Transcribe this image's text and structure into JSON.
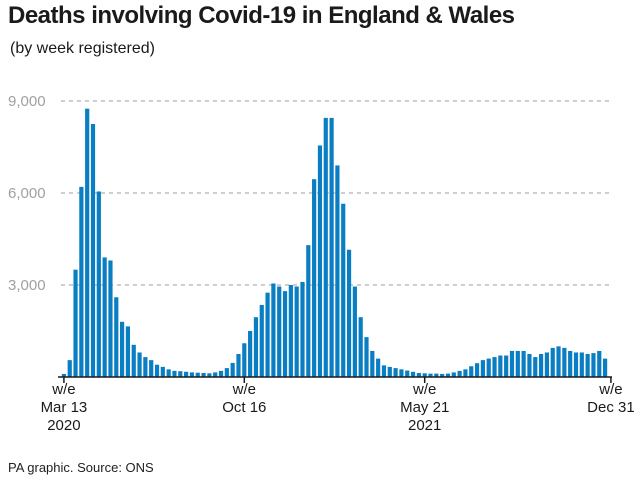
{
  "title": "Deaths involving Covid-19 in England & Wales",
  "subtitle": "(by week registered)",
  "source": "PA graphic. Source: ONS",
  "colors": {
    "bar": "#0a7ec2",
    "grid": "#b0b0b0",
    "axis": "#1a1a1a"
  },
  "chart_data": {
    "type": "bar",
    "title": "Deaths involving Covid-19 in England & Wales",
    "subtitle": "(by week registered)",
    "xlabel": "",
    "ylabel": "",
    "ylim": [
      0,
      9000
    ],
    "yticks": [
      3000,
      6000,
      9000
    ],
    "ytick_labels": [
      "3,000",
      "6,000",
      "9,000"
    ],
    "grid": true,
    "x_tick_labels": [
      {
        "bar_index": 0,
        "lines": [
          "w/e",
          "Mar 13",
          "2020"
        ]
      },
      {
        "bar_index": 31,
        "lines": [
          "w/e",
          "Oct 16"
        ]
      },
      {
        "bar_index": 62,
        "lines": [
          "w/e",
          "May 21",
          "2021"
        ]
      },
      {
        "bar_index": 94,
        "lines": [
          "w/e",
          "Dec 31"
        ]
      }
    ],
    "values": [
      100,
      550,
      3500,
      6200,
      8750,
      8250,
      6050,
      3900,
      3800,
      2600,
      1800,
      1650,
      1050,
      800,
      650,
      550,
      400,
      330,
      250,
      200,
      190,
      170,
      150,
      140,
      130,
      120,
      150,
      200,
      290,
      460,
      750,
      1100,
      1500,
      1950,
      2350,
      2750,
      3050,
      2950,
      2800,
      3000,
      2950,
      3100,
      4300,
      6450,
      7550,
      8450,
      8450,
      6900,
      5650,
      4150,
      2950,
      1950,
      1300,
      850,
      600,
      380,
      330,
      290,
      250,
      210,
      170,
      130,
      120,
      110,
      110,
      100,
      110,
      150,
      200,
      250,
      350,
      450,
      550,
      600,
      650,
      700,
      700,
      850,
      850,
      850,
      750,
      650,
      750,
      800,
      950,
      1000,
      950,
      850,
      800,
      800,
      750,
      780,
      850,
      600
    ]
  }
}
